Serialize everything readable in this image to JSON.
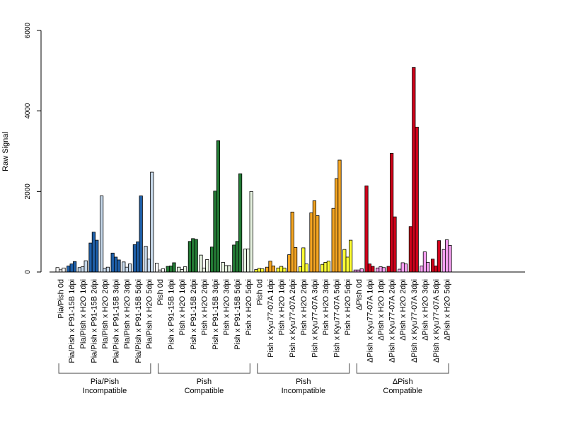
{
  "chart_data": {
    "type": "bar",
    "ylabel": "Raw Signal",
    "ylim": [
      0,
      6000
    ],
    "yticks": [
      0,
      2000,
      4000,
      6000
    ],
    "categories": [
      {
        "label": "Pia/Pish 0d",
        "fill": "#ffffff",
        "values": [
          110,
          55,
          100
        ]
      },
      {
        "label": "Pia/Pish x P91-15B 1dpi",
        "fill": "#1f5fa8",
        "values": [
          150,
          200,
          260
        ]
      },
      {
        "label": "Pia/Pish x H2O 1dpi",
        "fill": "#c6d8ea",
        "values": [
          110,
          130,
          280
        ]
      },
      {
        "label": "Pia/Pish x P91-15B 2dpi",
        "fill": "#1f5fa8",
        "values": [
          720,
          990,
          790
        ]
      },
      {
        "label": "Pia/Pish x H2O 2dpi",
        "fill": "#c6d8ea",
        "values": [
          1890,
          90,
          120
        ]
      },
      {
        "label": "Pia/Pish x P91-15B 3dpi",
        "fill": "#1f5fa8",
        "values": [
          470,
          370,
          300
        ]
      },
      {
        "label": "Pia/Pish x H2O 3dpi",
        "fill": "#c6d8ea",
        "values": [
          250,
          120,
          200
        ]
      },
      {
        "label": "Pia/Pish x P91-15B 5dpi",
        "fill": "#1f5fa8",
        "values": [
          680,
          750,
          1890
        ]
      },
      {
        "label": "Pia/Pish x H2O 5dpi",
        "fill": "#c6d8ea",
        "values": [
          640,
          320,
          2480
        ]
      },
      {
        "label": "Pish 0d",
        "fill": "#ffffff",
        "values": [
          220,
          50,
          80
        ]
      },
      {
        "label": "Pish x P91-15B 1dpi",
        "fill": "#237a35",
        "values": [
          140,
          150,
          230
        ]
      },
      {
        "label": "Pish x H2O 1dpi",
        "fill": "#e6f2e0",
        "values": [
          120,
          60,
          130
        ]
      },
      {
        "label": "Pish x P91-15B 2dpi",
        "fill": "#237a35",
        "values": [
          760,
          830,
          810
        ]
      },
      {
        "label": "Pish x H2O 2dpi",
        "fill": "#e6f2e0",
        "values": [
          420,
          100,
          310
        ]
      },
      {
        "label": "Pish x P91-15B 3dpi",
        "fill": "#237a35",
        "values": [
          620,
          2010,
          3260
        ]
      },
      {
        "label": "Pish x H2O 3dpi",
        "fill": "#e6f2e0",
        "values": [
          240,
          160,
          160
        ]
      },
      {
        "label": "Pish x P91-15B 5dpi",
        "fill": "#237a35",
        "values": [
          670,
          760,
          2440
        ]
      },
      {
        "label": "Pish x H2O 5dpi",
        "fill": "#e6f2e0",
        "values": [
          570,
          570,
          2000
        ]
      },
      {
        "label": "Pish 0d",
        "fill": "#ffff33",
        "values": [
          60,
          90,
          80
        ]
      },
      {
        "label": "Pish x Kyu77-07A 1dpi",
        "fill": "#f5a623",
        "values": [
          120,
          270,
          150
        ]
      },
      {
        "label": "Pish x H2O 1dpi",
        "fill": "#ffff33",
        "values": [
          100,
          140,
          100
        ]
      },
      {
        "label": "Pish x Kyu77-07A 2dpi",
        "fill": "#f5a623",
        "values": [
          430,
          1490,
          610
        ]
      },
      {
        "label": "Pish x H2O 2dpi",
        "fill": "#ffff33",
        "values": [
          130,
          600,
          200
        ]
      },
      {
        "label": "Pish x Kyu77-07A 3dpi",
        "fill": "#f5a623",
        "values": [
          1470,
          1770,
          1400
        ]
      },
      {
        "label": "Pish x H2O 3dpi",
        "fill": "#ffff33",
        "values": [
          190,
          240,
          270
        ]
      },
      {
        "label": "Pish x Kyu77-07A 5dpi",
        "fill": "#f5a623",
        "values": [
          1580,
          2320,
          2780
        ]
      },
      {
        "label": "Pish x H2O 5dpi",
        "fill": "#ffff33",
        "values": [
          560,
          370,
          790
        ]
      },
      {
        "label": "ΔPish 0d",
        "fill": "#f49ef0",
        "values": [
          50,
          50,
          80
        ]
      },
      {
        "label": "ΔPish x Kyu77-07A 1dpi",
        "fill": "#d0021b",
        "values": [
          2140,
          200,
          140
        ]
      },
      {
        "label": "ΔPish x H2O 1dpi",
        "fill": "#f49ef0",
        "values": [
          100,
          130,
          110
        ]
      },
      {
        "label": "ΔPish x Kyu77-07A 2dpi",
        "fill": "#d0021b",
        "values": [
          140,
          2950,
          1370
        ]
      },
      {
        "label": "ΔPish x H2O 2dpi",
        "fill": "#f49ef0",
        "values": [
          70,
          230,
          200
        ]
      },
      {
        "label": "ΔPish x Kyu77-07A 3dpi",
        "fill": "#d0021b",
        "values": [
          1130,
          5080,
          3600
        ]
      },
      {
        "label": "ΔPish x H2O 3dpi",
        "fill": "#f49ef0",
        "values": [
          150,
          500,
          240
        ]
      },
      {
        "label": "ΔPish x Kyu77-07A 5dpi",
        "fill": "#d0021b",
        "values": [
          320,
          150,
          780
        ]
      },
      {
        "label": "ΔPish x H2O 5dpi",
        "fill": "#f49ef0",
        "values": [
          560,
          800,
          660
        ]
      }
    ],
    "groups": [
      {
        "line1": "Pia/Pish",
        "line2": "Incompatible",
        "first": 0,
        "last": 8
      },
      {
        "line1": "Pish",
        "line2": "Compatible",
        "first": 9,
        "last": 17
      },
      {
        "line1": "Pish",
        "line2": "Incompatible",
        "first": 18,
        "last": 26
      },
      {
        "line1": "ΔPish",
        "line2": "Compatible",
        "first": 27,
        "last": 35
      }
    ]
  }
}
